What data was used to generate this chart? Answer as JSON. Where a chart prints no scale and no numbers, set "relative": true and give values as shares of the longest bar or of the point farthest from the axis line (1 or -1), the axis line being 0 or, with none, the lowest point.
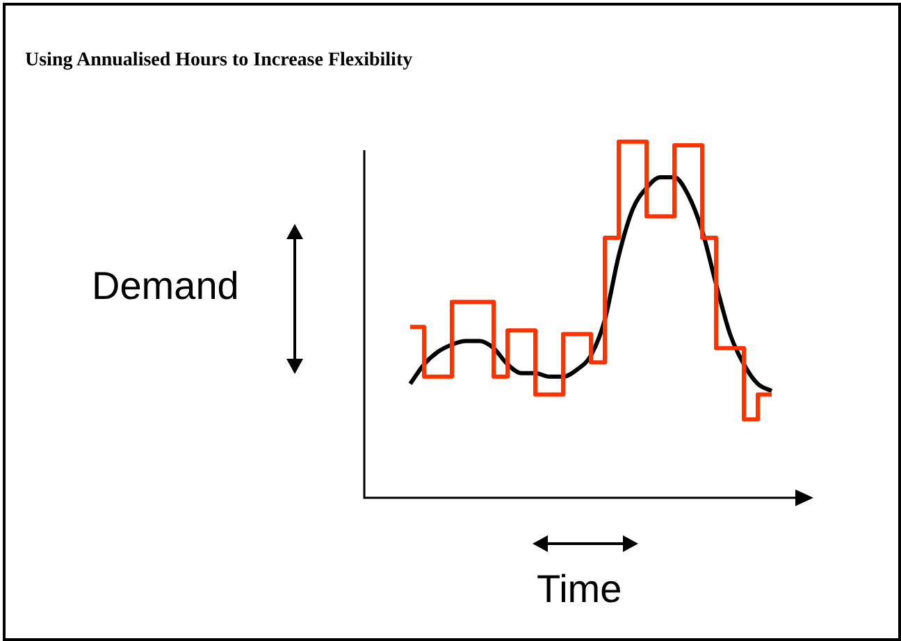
{
  "chart_data": {
    "type": "line",
    "title": "Using Annualised Hours to Increase Flexibility",
    "xlabel": "Time",
    "ylabel": "Demand",
    "relative": true,
    "tick_labels": false,
    "categories": [
      null,
      null,
      null,
      null,
      null,
      null,
      null,
      null,
      null,
      null,
      null,
      null,
      null,
      null,
      null,
      null,
      null,
      null,
      null,
      null,
      null,
      null,
      null,
      null,
      null,
      null,
      null
    ],
    "series": [
      {
        "type": "line",
        "color": "#000000",
        "values": [
          0.32,
          0.375,
          0.41,
          0.43,
          0.44,
          0.44,
          0.42,
          0.375,
          0.35,
          0.35,
          0.34,
          0.34,
          0.36,
          0.4,
          0.5,
          0.68,
          0.81,
          0.87,
          0.9,
          0.9,
          0.85,
          0.75,
          0.6,
          0.46,
          0.375,
          0.32,
          0.3
        ]
      },
      {
        "type": "step",
        "color": "#ff3300",
        "values": [
          0.48,
          0.48,
          0.34,
          0.34,
          0.55,
          0.55,
          0.55,
          0.34,
          0.47,
          0.47,
          0.29,
          0.29,
          0.46,
          0.46,
          0.38,
          0.73,
          1,
          1,
          0.79,
          0.79,
          0.99,
          0.99,
          0.73,
          0.42,
          0.42,
          0.22,
          0.29
        ]
      }
    ]
  }
}
